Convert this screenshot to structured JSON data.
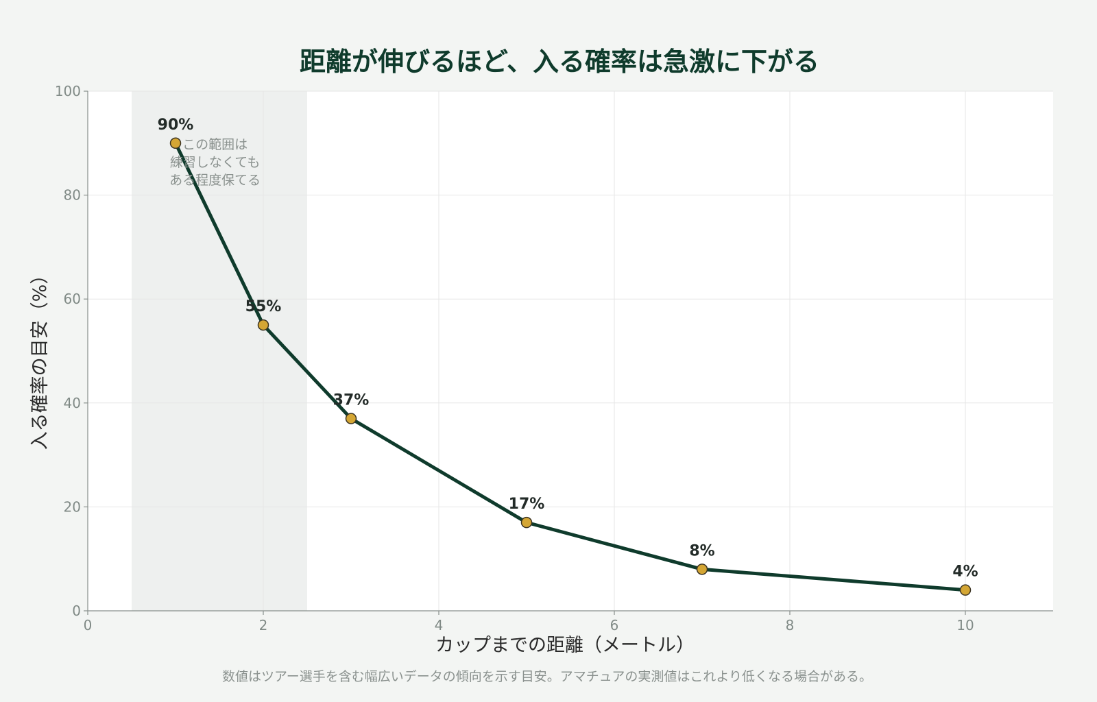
{
  "chart_data": {
    "type": "line",
    "title": "距離が伸びるほど、入る確率は急激に下がる",
    "xlabel": "カップまでの距離（メートル）",
    "ylabel": "入る確率の目安（%）",
    "x": [
      1,
      2,
      3,
      5,
      7,
      10
    ],
    "series": [
      {
        "values": [
          90,
          55,
          37,
          17,
          8,
          4
        ]
      }
    ],
    "data_labels": [
      "90%",
      "55%",
      "37%",
      "17%",
      "8%",
      "4%"
    ],
    "xlim": [
      0,
      11
    ],
    "ylim": [
      0,
      100
    ],
    "x_ticks": [
      0,
      2,
      4,
      6,
      8,
      10
    ],
    "y_ticks": [
      0,
      20,
      40,
      60,
      80,
      100
    ],
    "grid": true,
    "highlight_band": {
      "x_range": [
        0.5,
        2.5
      ],
      "annotation": [
        "この範囲は",
        "練習しなくても",
        "ある程度保てる"
      ]
    },
    "footnote": "数値はツアー選手を含む幅広いデータの傾向を示す目安。アマチュアの実測値はこれより低くなる場合がある。",
    "colors": {
      "line": "#0f3b2c",
      "marker_fill": "#d4a634",
      "marker_stroke": "#3b3322",
      "band": "#e3e6e4",
      "plot_bg": "#ffffff",
      "page_bg": "#f3f5f3"
    }
  }
}
